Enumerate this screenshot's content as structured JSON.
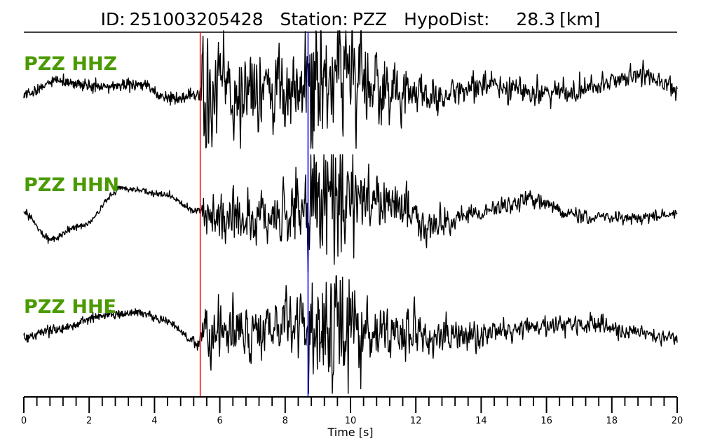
{
  "title": {
    "id_label": "ID:",
    "id_value": "251003205428",
    "station_label": "Station:",
    "station_value": "PZZ",
    "hypodist_label": "HypoDist:",
    "hypodist_value": "28.3",
    "hypodist_unit": "[km]"
  },
  "colors": {
    "label": "#4a9a00",
    "trace": "#000000",
    "p_pick": "#ff0000",
    "s_pick": "#0000ff"
  },
  "chart_data": {
    "type": "line",
    "xlabel": "Time [s]",
    "xlim": [
      0,
      20
    ],
    "x_tick_labels": [
      "0",
      "2",
      "4",
      "6",
      "8",
      "10",
      "12",
      "14",
      "16",
      "18",
      "20"
    ],
    "minor_tick_step": 0.4,
    "picks": [
      {
        "phase": "P",
        "time": 5.4,
        "color": "#ff0000"
      },
      {
        "phase": "S",
        "time": 8.7,
        "color": "#0000ff"
      }
    ],
    "series": [
      {
        "name": "PZZ HHZ",
        "noise_amp": 0.05,
        "pre_event": [
          [
            0,
            -0.1
          ],
          [
            1,
            0.15
          ],
          [
            2.5,
            0.05
          ],
          [
            3.5,
            0.1
          ],
          [
            4.5,
            -0.15
          ],
          [
            5.35,
            -0.1
          ]
        ],
        "trend": [
          [
            5.4,
            0
          ],
          [
            8.5,
            0
          ],
          [
            9.5,
            0.4
          ],
          [
            11,
            0.1
          ],
          [
            12.5,
            -0.3
          ],
          [
            14,
            0.2
          ],
          [
            15.5,
            -0.1
          ],
          [
            17,
            0
          ],
          [
            19,
            0.45
          ],
          [
            20,
            0
          ]
        ],
        "envelope": [
          [
            5.4,
            0.0
          ],
          [
            5.45,
            0.8
          ],
          [
            6,
            0.65
          ],
          [
            7.5,
            0.45
          ],
          [
            8.6,
            0.55
          ],
          [
            8.8,
            1.0
          ],
          [
            10,
            0.8
          ],
          [
            11,
            0.45
          ],
          [
            12.5,
            0.25
          ],
          [
            14,
            0.18
          ],
          [
            20,
            0.12
          ]
        ]
      },
      {
        "name": "PZZ HHN",
        "noise_amp": 0.03,
        "pre_event": [
          [
            0,
            0.0
          ],
          [
            0.8,
            -0.45
          ],
          [
            1.8,
            -0.2
          ],
          [
            3.0,
            0.45
          ],
          [
            4.2,
            0.35
          ],
          [
            5.35,
            0.05
          ]
        ],
        "trend": [
          [
            5.4,
            0
          ],
          [
            7,
            -0.3
          ],
          [
            8.5,
            0.2
          ],
          [
            9.5,
            0.45
          ],
          [
            11,
            0.3
          ],
          [
            12.5,
            -0.35
          ],
          [
            14,
            0.05
          ],
          [
            15.5,
            0.4
          ],
          [
            17,
            -0.1
          ],
          [
            18.5,
            -0.15
          ],
          [
            20,
            0
          ]
        ],
        "envelope": [
          [
            5.4,
            0.0
          ],
          [
            5.45,
            0.35
          ],
          [
            7,
            0.3
          ],
          [
            8.6,
            0.45
          ],
          [
            8.8,
            1.0
          ],
          [
            10,
            0.65
          ],
          [
            11,
            0.4
          ],
          [
            12.5,
            0.22
          ],
          [
            14,
            0.12
          ],
          [
            20,
            0.06
          ]
        ]
      },
      {
        "name": "PZZ HHE",
        "noise_amp": 0.04,
        "pre_event": [
          [
            0,
            -0.05
          ],
          [
            1,
            0.1
          ],
          [
            2.5,
            0.35
          ],
          [
            3.5,
            0.4
          ],
          [
            4.3,
            0.25
          ],
          [
            5.35,
            -0.15
          ]
        ],
        "trend": [
          [
            5.4,
            0
          ],
          [
            7.5,
            0.15
          ],
          [
            8.6,
            0.25
          ],
          [
            10,
            0.15
          ],
          [
            11.5,
            -0.05
          ],
          [
            13,
            -0.1
          ],
          [
            15,
            0.15
          ],
          [
            17.5,
            0.35
          ],
          [
            18.5,
            0.05
          ],
          [
            20,
            -0.1
          ]
        ],
        "envelope": [
          [
            5.4,
            0.0
          ],
          [
            5.45,
            0.45
          ],
          [
            6.5,
            0.35
          ],
          [
            8.6,
            0.45
          ],
          [
            8.8,
            1.0
          ],
          [
            10,
            0.65
          ],
          [
            11,
            0.4
          ],
          [
            12.5,
            0.25
          ],
          [
            14,
            0.15
          ],
          [
            20,
            0.1
          ]
        ]
      }
    ]
  }
}
